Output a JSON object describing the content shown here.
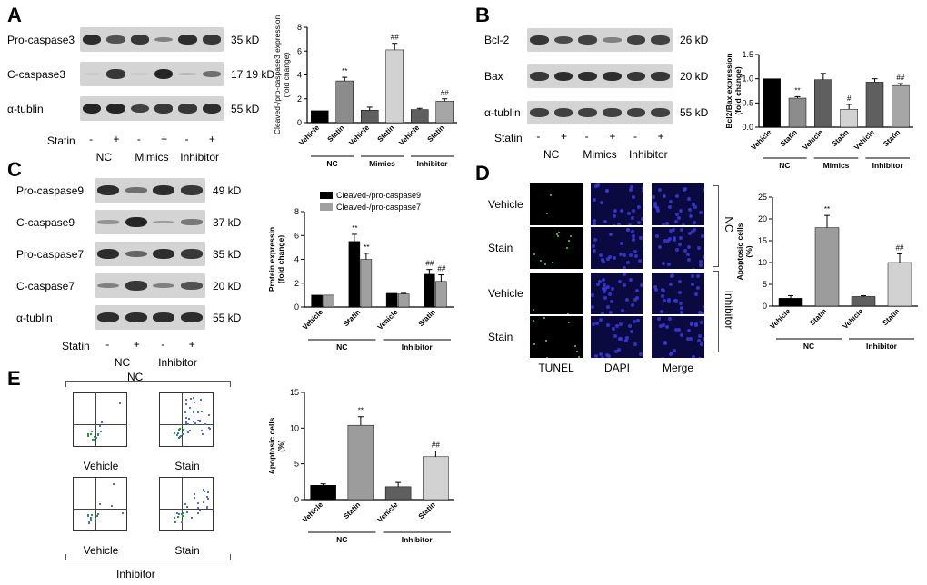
{
  "panels": {
    "A": {
      "letter": "A",
      "rows": [
        {
          "label": "Pro-caspase3",
          "kd": "35 kD",
          "bands": [
            0.9,
            0.7,
            0.85,
            0.45,
            0.9,
            0.85
          ]
        },
        {
          "label": "C-caspase3",
          "kd": "17 19 kD",
          "bands": [
            0.05,
            0.85,
            0.05,
            0.95,
            0.15,
            0.55
          ]
        },
        {
          "label": "α-tublin",
          "kd": "55 kD",
          "bands": [
            0.95,
            0.95,
            0.8,
            0.85,
            0.85,
            0.9
          ]
        }
      ],
      "statin_label": "Statin",
      "lanes": [
        "-",
        "+",
        "-",
        "+",
        "-",
        "+"
      ],
      "groups": [
        "NC",
        "Mimics",
        "Inhibitor"
      ]
    },
    "B": {
      "letter": "B",
      "rows": [
        {
          "label": "Bcl-2",
          "kd": "26 kD",
          "bands": [
            0.85,
            0.75,
            0.8,
            0.45,
            0.8,
            0.8
          ]
        },
        {
          "label": "Bax",
          "kd": "20 kD",
          "bands": [
            0.85,
            0.9,
            0.9,
            0.9,
            0.85,
            0.85
          ]
        },
        {
          "label": "α-tublin",
          "kd": "55 kD",
          "bands": [
            0.8,
            0.8,
            0.8,
            0.8,
            0.8,
            0.8
          ]
        }
      ],
      "statin_label": "Statin",
      "lanes": [
        "-",
        "+",
        "-",
        "+",
        "-",
        "+"
      ],
      "groups": [
        "NC",
        "Mimics",
        "Inhibitor"
      ]
    },
    "C": {
      "letter": "C",
      "rows": [
        {
          "label": "Pro-caspase9",
          "kd": "49 kD",
          "bands": [
            0.9,
            0.55,
            0.9,
            0.85
          ]
        },
        {
          "label": "C-caspase9",
          "kd": "37 kD",
          "bands": [
            0.35,
            0.95,
            0.3,
            0.5
          ]
        },
        {
          "label": "Pro-caspase7",
          "kd": "35 kD",
          "bands": [
            0.9,
            0.6,
            0.9,
            0.85
          ]
        },
        {
          "label": "C-caspase7",
          "kd": "20 kD",
          "bands": [
            0.45,
            0.85,
            0.45,
            0.7
          ]
        },
        {
          "label": "α-tublin",
          "kd": "55 kD",
          "bands": [
            0.9,
            0.9,
            0.9,
            0.9
          ]
        }
      ],
      "statin_label": "Statin",
      "lanes": [
        "-",
        "+",
        "-",
        "+"
      ],
      "groups": [
        "NC",
        "Inhibitor"
      ]
    },
    "D": {
      "letter": "D",
      "rows": [
        "Vehicle",
        "Stain",
        "Vehicle",
        "Stain"
      ],
      "cols": [
        "TUNEL",
        "DAPI",
        "Merge"
      ],
      "side_groups": [
        "NC",
        "Inhibitor"
      ]
    },
    "E": {
      "letter": "E",
      "top_group": "NC",
      "bottom_group": "Inhibitor",
      "captions": [
        "Vehicle",
        "Stain",
        "Vehicle",
        "Stain"
      ]
    }
  },
  "chart_data": [
    {
      "type": "bar",
      "panel": "A",
      "ylabel": "Cleaved-/pro-caspase3 expression (fold change)",
      "ylim": [
        0,
        8
      ],
      "yticks": [
        "0",
        "2",
        "4",
        "6",
        "8"
      ],
      "categories": [
        "Vehicle",
        "Statin",
        "Vehicle",
        "Statin",
        "Vehicle",
        "Statin"
      ],
      "groups": [
        "NC",
        "Mimics",
        "Inhibitor"
      ],
      "values": [
        1.0,
        3.5,
        1.05,
        6.1,
        1.1,
        1.8
      ],
      "errors": [
        0.0,
        0.3,
        0.25,
        0.55,
        0.1,
        0.2
      ],
      "annotations": [
        "",
        "**",
        "",
        "##",
        "",
        "##"
      ],
      "colors": [
        "#000000",
        "#8c8c8c",
        "#5f5f5f",
        "#d2d2d2",
        "#5f5f5f",
        "#a6a6a6"
      ]
    },
    {
      "type": "bar",
      "panel": "B",
      "ylabel": "Bcl2/Bax expression (fold change)",
      "ylim": [
        0,
        1.5
      ],
      "yticks": [
        "0.0",
        "0.5",
        "1.0",
        "1.5"
      ],
      "categories": [
        "Vehicle",
        "Statin",
        "Vehicle",
        "Statin",
        "Vehicle",
        "Statin"
      ],
      "groups": [
        "NC",
        "Mimics",
        "Inhibitor"
      ],
      "values": [
        1.0,
        0.6,
        0.98,
        0.37,
        0.93,
        0.86
      ],
      "errors": [
        0.0,
        0.03,
        0.13,
        0.1,
        0.07,
        0.04
      ],
      "annotations": [
        "",
        "**",
        "",
        "#",
        "",
        "##"
      ],
      "colors": [
        "#000000",
        "#8c8c8c",
        "#5f5f5f",
        "#d2d2d2",
        "#5f5f5f",
        "#a6a6a6"
      ]
    },
    {
      "type": "bar",
      "panel": "C",
      "ylabel": "Protein expressin (fold change)",
      "ylim": [
        0,
        8
      ],
      "yticks": [
        "0",
        "2",
        "4",
        "6",
        "8"
      ],
      "categories": [
        "Vehicle",
        "Statin",
        "Vehicle",
        "Statin"
      ],
      "groups": [
        "NC",
        "Inhibitor"
      ],
      "legend": [
        "Cleaved-/pro-caspase9",
        "Cleaved-/pro-caspase7"
      ],
      "series": [
        {
          "name": "Cleaved-/pro-caspase9",
          "values": [
            1.0,
            5.5,
            1.15,
            2.75
          ],
          "errors": [
            0.0,
            0.6,
            0.0,
            0.4
          ],
          "annotations": [
            "",
            "**",
            "",
            "##"
          ],
          "color": "#000000"
        },
        {
          "name": "Cleaved-/pro-caspase7",
          "values": [
            1.0,
            4.0,
            1.1,
            2.15
          ],
          "errors": [
            0.0,
            0.5,
            0.05,
            0.55
          ],
          "annotations": [
            "",
            "**",
            "",
            "##"
          ],
          "color": "#a0a0a0"
        }
      ]
    },
    {
      "type": "bar",
      "panel": "D",
      "ylabel": "Apoptosic cells (%)",
      "ylim": [
        0,
        25
      ],
      "yticks": [
        "0",
        "5",
        "10",
        "15",
        "20",
        "25"
      ],
      "categories": [
        "Vehicle",
        "Statin",
        "Vehicle",
        "Statin"
      ],
      "groups": [
        "NC",
        "Inhibitor"
      ],
      "values": [
        1.8,
        18.0,
        2.2,
        10.0
      ],
      "errors": [
        0.6,
        2.8,
        0.2,
        2.0
      ],
      "annotations": [
        "",
        "**",
        "",
        "##"
      ],
      "colors": [
        "#000000",
        "#9c9c9c",
        "#5f5f5f",
        "#d2d2d2"
      ]
    },
    {
      "type": "bar",
      "panel": "E",
      "ylabel": "Apoptosic cells (%)",
      "ylim": [
        0,
        15
      ],
      "yticks": [
        "0",
        "5",
        "10",
        "15"
      ],
      "categories": [
        "Vehicle",
        "Statin",
        "Vehicle",
        "Statin"
      ],
      "groups": [
        "NC",
        "Inhibitor"
      ],
      "values": [
        2.0,
        10.4,
        1.8,
        6.0
      ],
      "errors": [
        0.2,
        1.2,
        0.6,
        0.8
      ],
      "annotations": [
        "",
        "**",
        "",
        "##"
      ],
      "colors": [
        "#000000",
        "#9c9c9c",
        "#5f5f5f",
        "#d2d2d2"
      ]
    }
  ]
}
